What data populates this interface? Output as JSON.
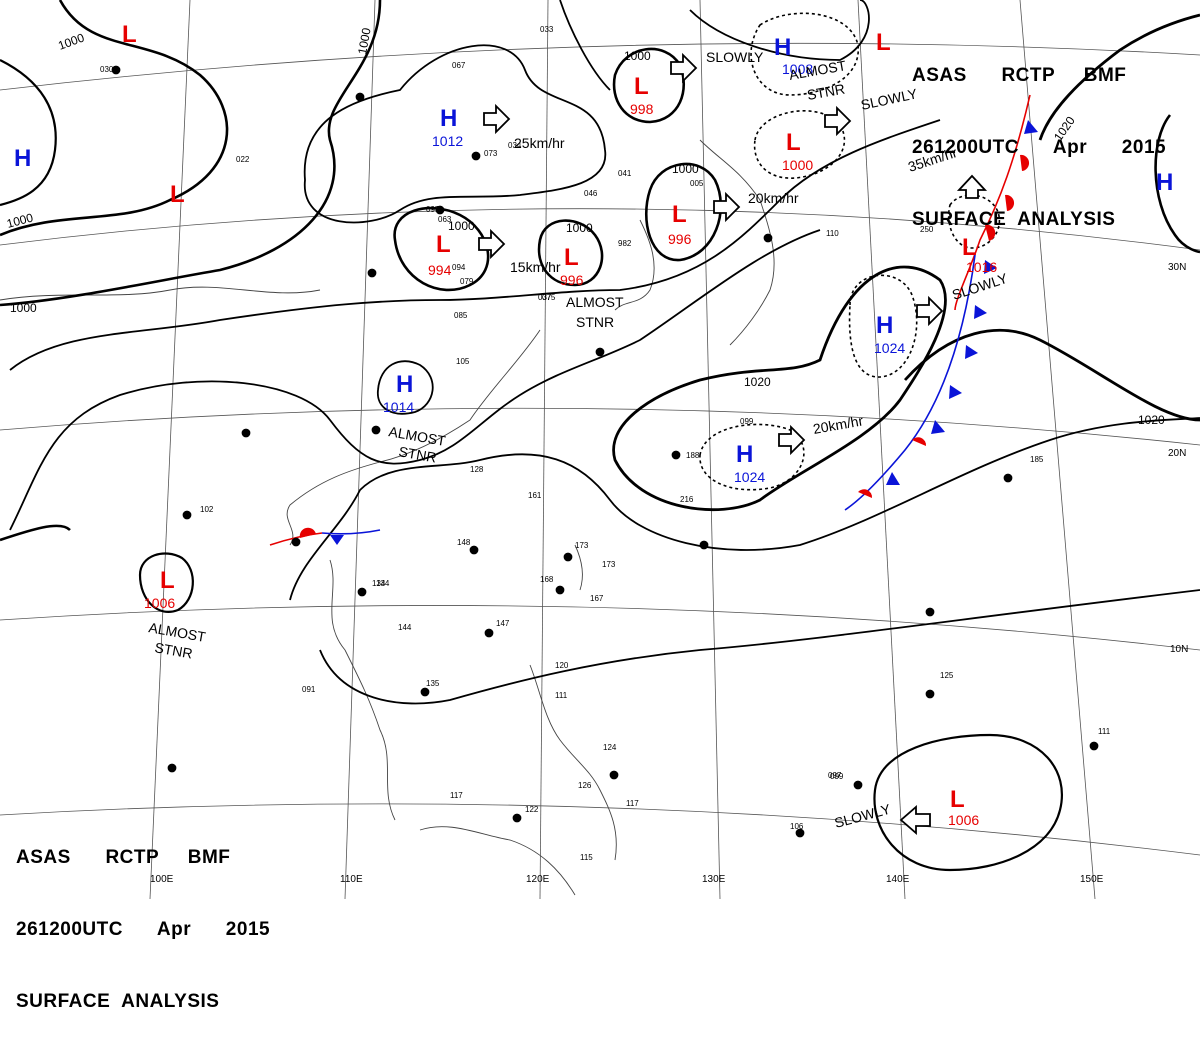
{
  "header": {
    "line1": "ASAS      RCTP     BMF",
    "line2": "261200UTC      Apr      2015",
    "line3": "SURFACE  ANALYSIS"
  },
  "footer": {
    "line1": "ASAS      RCTP     BMF",
    "line2": "261200UTC      Apr      2015",
    "line3": "SURFACE  ANALYSIS"
  },
  "colors": {
    "low": "#e60000",
    "high": "#0a14d8",
    "warm_front": "#e60000",
    "cold_front": "#0a14d8",
    "isobar": "#000000"
  },
  "highs": [
    {
      "symbol": "H",
      "pressure": ""
    },
    {
      "symbol": "H",
      "pressure": "1012"
    },
    {
      "symbol": "H",
      "pressure": "1008"
    },
    {
      "symbol": "H",
      "pressure": "1024"
    },
    {
      "symbol": "H",
      "pressure": "1014"
    },
    {
      "symbol": "H",
      "pressure": "1024"
    },
    {
      "symbol": "H",
      "pressure": ""
    }
  ],
  "lows": [
    {
      "symbol": "L",
      "pressure": ""
    },
    {
      "symbol": "L",
      "pressure": ""
    },
    {
      "symbol": "L",
      "pressure": "994"
    },
    {
      "symbol": "L",
      "pressure": "996"
    },
    {
      "symbol": "L",
      "pressure": "998"
    },
    {
      "symbol": "L",
      "pressure": "1000"
    },
    {
      "symbol": "L",
      "pressure": "996"
    },
    {
      "symbol": "L",
      "pressure": ""
    },
    {
      "symbol": "L",
      "pressure": "1016"
    },
    {
      "symbol": "L",
      "pressure": "1006"
    },
    {
      "symbol": "L",
      "pressure": "1006"
    }
  ],
  "isobar_labels": [
    "1000",
    "1000",
    "1000",
    "1000",
    "1000",
    "1000",
    "1000",
    "1000",
    "1020",
    "1020",
    "1020"
  ],
  "motion_labels": [
    "25km/hr",
    "15km/hr",
    "20km/hr",
    "35km/hr",
    "20km/hr",
    "SLOWLY",
    "SLOWLY",
    "SLOWLY",
    "SLOWLY"
  ],
  "stationary_labels": [
    {
      "line1": "ALMOST",
      "line2": "STNR"
    },
    {
      "line1": "ALMOST",
      "line2": "STNR"
    },
    {
      "line1": "ALMOST",
      "line2": "STNR"
    },
    {
      "line1": "ALMOST",
      "line2": "STNR"
    }
  ],
  "longitude_labels": [
    "100E",
    "110E",
    "120E",
    "130E",
    "140E",
    "150E"
  ],
  "latitude_labels": [
    "30N",
    "20N",
    "10N"
  ],
  "station_numbers": [
    "033",
    "067",
    "073",
    "075",
    "037",
    "085",
    "105",
    "128",
    "161",
    "173",
    "173",
    "167",
    "168",
    "148",
    "147",
    "134",
    "144",
    "135",
    "091",
    "117",
    "122",
    "115",
    "124",
    "120",
    "111",
    "126",
    "117",
    "097",
    "185",
    "216",
    "188",
    "250",
    "110",
    "125",
    "111",
    "106",
    "099",
    "099",
    "102",
    "134",
    "030",
    "022",
    "041",
    "005",
    "982",
    "095",
    "094",
    "079",
    "063",
    "034",
    "046"
  ]
}
